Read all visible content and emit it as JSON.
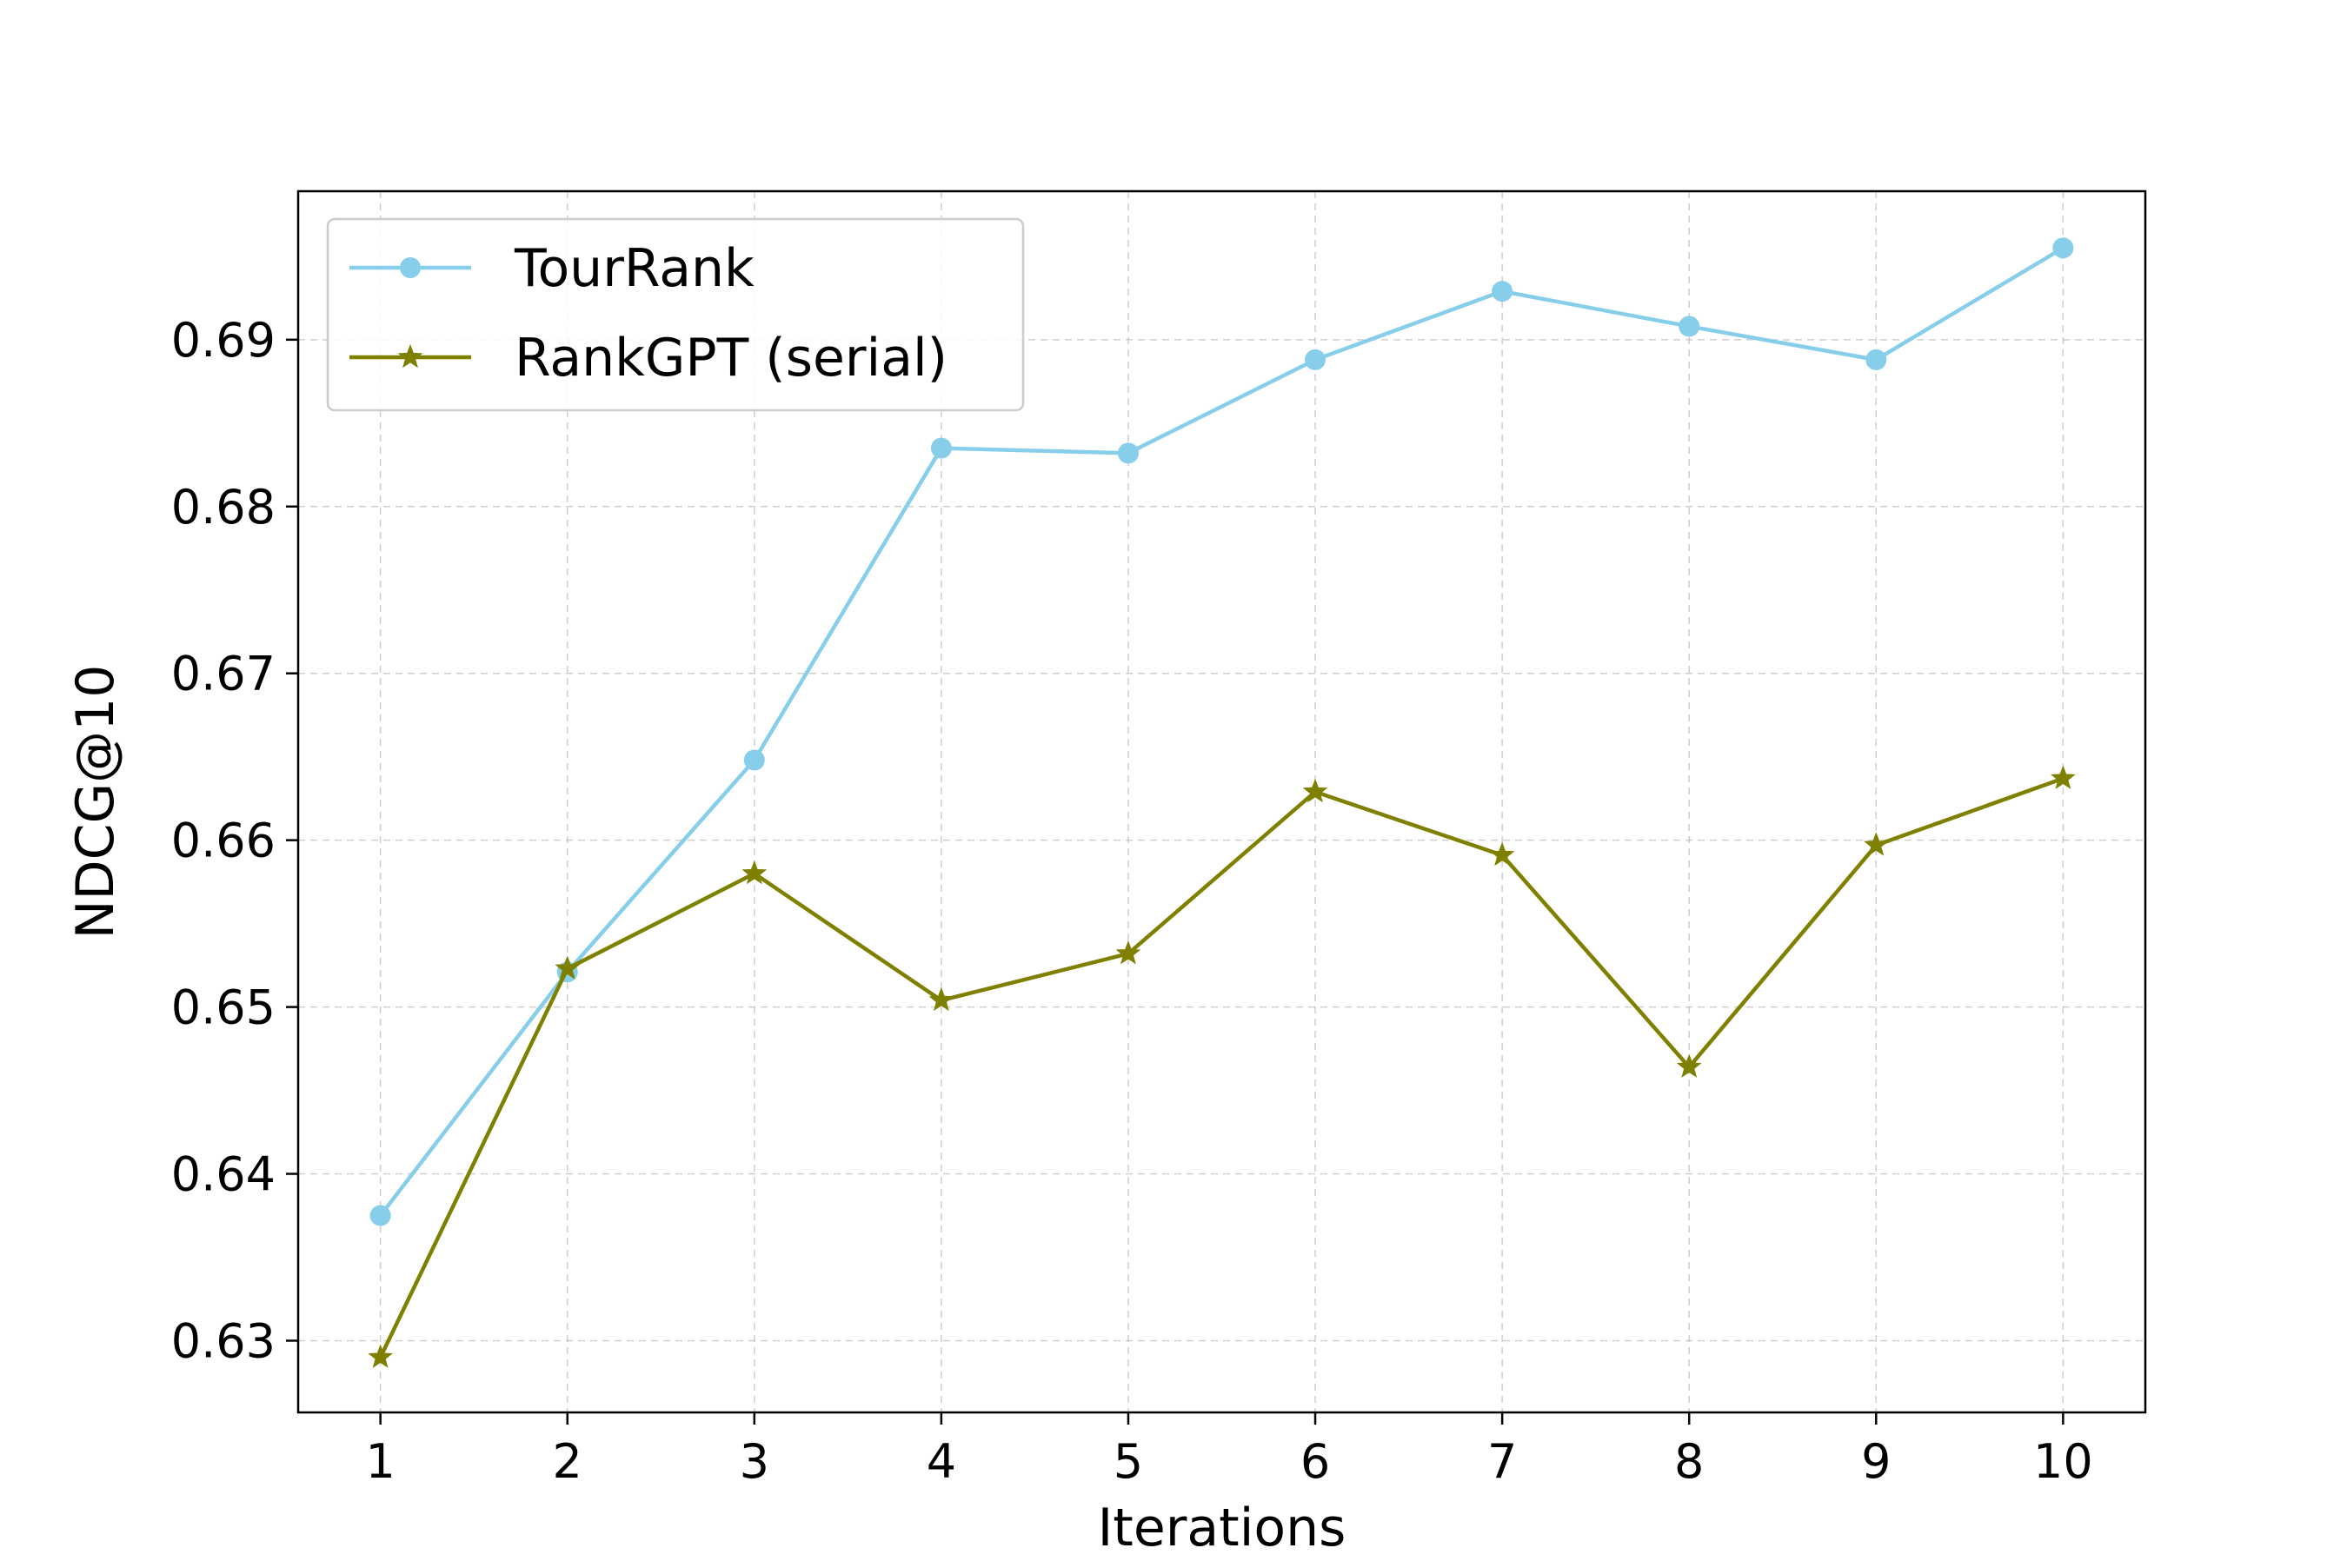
{
  "chart_data": {
    "type": "line",
    "x": [
      1,
      2,
      3,
      4,
      5,
      6,
      7,
      8,
      9,
      10
    ],
    "series": [
      {
        "name": "TourRank",
        "values": [
          0.6375,
          0.6521,
          0.6648,
          0.6835,
          0.6832,
          0.6888,
          0.6929,
          0.6908,
          0.6888,
          0.6955
        ],
        "color": "#87ceeb",
        "marker": "circle"
      },
      {
        "name": "RankGPT (serial)",
        "values": [
          0.629,
          0.6523,
          0.658,
          0.6504,
          0.6532,
          0.6629,
          0.6591,
          0.6464,
          0.6597,
          0.6637
        ],
        "color": "#808000",
        "marker": "star"
      }
    ],
    "xticks": [
      "1",
      "2",
      "3",
      "4",
      "5",
      "6",
      "7",
      "8",
      "9",
      "10"
    ],
    "yticks": [
      "0.63",
      "0.64",
      "0.65",
      "0.66",
      "0.67",
      "0.68",
      "0.69"
    ],
    "ytick_values": [
      0.63,
      0.64,
      0.65,
      0.66,
      0.67,
      0.68,
      0.69
    ],
    "xlabel": "Iterations",
    "ylabel": "NDCG@10",
    "xlim": [
      0.56,
      10.44
    ],
    "ylim": [
      0.6257,
      0.6989
    ],
    "grid": true,
    "legend_position": "upper-left"
  }
}
